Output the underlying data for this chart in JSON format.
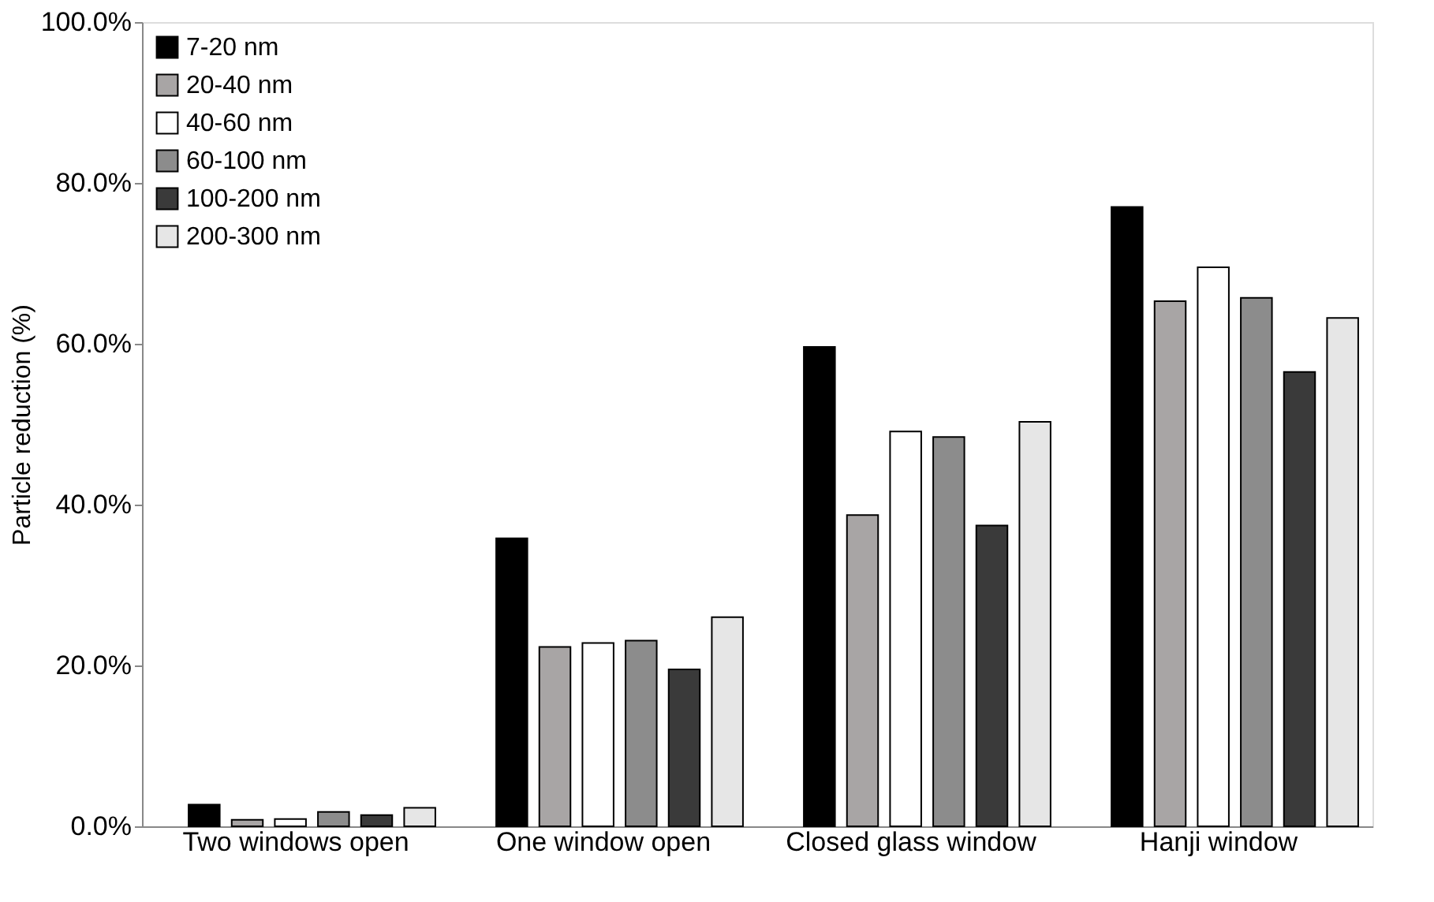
{
  "chart_data": {
    "type": "bar",
    "ylabel": "Particle reduction (%)",
    "categories": [
      "Two windows open",
      "One window open",
      "Closed glass window",
      "Hanji window"
    ],
    "series": [
      {
        "name": "7-20 nm",
        "color": "#000000",
        "values": [
          2.7,
          35.8,
          59.6,
          77.0
        ]
      },
      {
        "name": "20-40 nm",
        "color": "#a8a5a5",
        "values": [
          0.8,
          22.3,
          38.7,
          65.3
        ]
      },
      {
        "name": "40-60 nm",
        "color": "#ffffff",
        "values": [
          0.9,
          22.8,
          49.1,
          69.5
        ]
      },
      {
        "name": "60-100 nm",
        "color": "#8c8c8c",
        "values": [
          1.8,
          23.1,
          48.4,
          65.7
        ]
      },
      {
        "name": "100-200 nm",
        "color": "#3a3a3a",
        "values": [
          1.4,
          19.5,
          37.4,
          56.5
        ]
      },
      {
        "name": "200-300 nm",
        "color": "#e6e6e6",
        "values": [
          2.3,
          26.0,
          50.3,
          63.2
        ]
      }
    ],
    "ylim": [
      0,
      100
    ],
    "yticks": [
      {
        "value": 0,
        "label": "0.0%"
      },
      {
        "value": 20,
        "label": "20.0%"
      },
      {
        "value": 40,
        "label": "40.0%"
      },
      {
        "value": 60,
        "label": "60.0%"
      },
      {
        "value": 80,
        "label": "80.0%"
      },
      {
        "value": 100,
        "label": "100.0%"
      }
    ],
    "grid": false,
    "legend": "top left"
  }
}
